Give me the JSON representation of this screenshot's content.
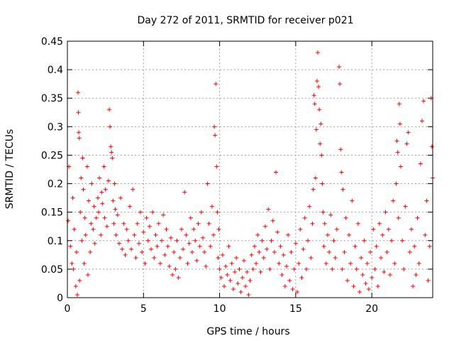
{
  "chart_data": {
    "type": "scatter",
    "title": "Day 272 of 2011, SRMTID for receiver p021",
    "xlabel": "GPS time / hours",
    "ylabel": "SRMTID / TECUs",
    "xlim": [
      0,
      24
    ],
    "ylim": [
      0,
      0.45
    ],
    "x_ticks": [
      0,
      5,
      10,
      15,
      20
    ],
    "y_ticks": [
      0,
      0.05,
      0.1,
      0.15,
      0.2,
      0.25,
      0.3,
      0.35,
      0.4,
      0.45
    ],
    "x_tick_labels": [
      "0",
      "5",
      "10",
      "15",
      "20"
    ],
    "y_tick_labels": [
      "0",
      "0.05",
      "0.1",
      "0.15",
      "0.2",
      "0.25",
      "0.3",
      "0.35",
      "0.4",
      "0.45"
    ],
    "grid": true,
    "marker": "+",
    "color": "#ff0000",
    "series": [
      {
        "name": "SRMTID",
        "points": [
          [
            0.05,
            0.135
          ],
          [
            0.1,
            0.23
          ],
          [
            0.2,
            0.09
          ],
          [
            0.3,
            0.06
          ],
          [
            0.35,
            0.175
          ],
          [
            0.4,
            0.05
          ],
          [
            0.45,
            0.12
          ],
          [
            0.55,
            0.02
          ],
          [
            0.6,
            0.08
          ],
          [
            0.65,
            0.005
          ],
          [
            0.7,
            0.36
          ],
          [
            0.72,
            0.325
          ],
          [
            0.75,
            0.29
          ],
          [
            0.78,
            0.28
          ],
          [
            0.8,
            0.03
          ],
          [
            0.85,
            0.15
          ],
          [
            0.9,
            0.21
          ],
          [
            0.95,
            0.1
          ],
          [
            1.0,
            0.245
          ],
          [
            1.05,
            0.19
          ],
          [
            1.1,
            0.06
          ],
          [
            1.15,
            0.14
          ],
          [
            1.2,
            0.11
          ],
          [
            1.3,
            0.23
          ],
          [
            1.35,
            0.04
          ],
          [
            1.4,
            0.17
          ],
          [
            1.5,
            0.08
          ],
          [
            1.55,
            0.13
          ],
          [
            1.6,
            0.2
          ],
          [
            1.7,
            0.12
          ],
          [
            1.75,
            0.16
          ],
          [
            1.8,
            0.095
          ],
          [
            1.9,
            0.14
          ],
          [
            2.0,
            0.175
          ],
          [
            2.05,
            0.15
          ],
          [
            2.1,
            0.21
          ],
          [
            2.2,
            0.11
          ],
          [
            2.25,
            0.185
          ],
          [
            2.3,
            0.165
          ],
          [
            2.4,
            0.23
          ],
          [
            2.45,
            0.14
          ],
          [
            2.5,
            0.19
          ],
          [
            2.6,
            0.125
          ],
          [
            2.7,
            0.205
          ],
          [
            2.75,
            0.33
          ],
          [
            2.8,
            0.3
          ],
          [
            2.85,
            0.265
          ],
          [
            2.9,
            0.255
          ],
          [
            2.95,
            0.245
          ],
          [
            3.0,
            0.17
          ],
          [
            3.05,
            0.13
          ],
          [
            3.1,
            0.2
          ],
          [
            3.15,
            0.155
          ],
          [
            3.2,
            0.11
          ],
          [
            3.3,
            0.145
          ],
          [
            3.4,
            0.095
          ],
          [
            3.5,
            0.175
          ],
          [
            3.6,
            0.085
          ],
          [
            3.7,
            0.13
          ],
          [
            3.8,
            0.075
          ],
          [
            3.9,
            0.12
          ],
          [
            4.0,
            0.1
          ],
          [
            4.1,
            0.16
          ],
          [
            4.2,
            0.085
          ],
          [
            4.3,
            0.19
          ],
          [
            4.4,
            0.11
          ],
          [
            4.5,
            0.07
          ],
          [
            4.6,
            0.13
          ],
          [
            4.7,
            0.095
          ],
          [
            4.8,
            0.15
          ],
          [
            4.9,
            0.08
          ],
          [
            5.0,
            0.115
          ],
          [
            5.1,
            0.06
          ],
          [
            5.2,
            0.14
          ],
          [
            5.3,
            0.1
          ],
          [
            5.4,
            0.125
          ],
          [
            5.5,
            0.085
          ],
          [
            5.6,
            0.15
          ],
          [
            5.7,
            0.07
          ],
          [
            5.8,
            0.11
          ],
          [
            5.9,
            0.09
          ],
          [
            6.0,
            0.13
          ],
          [
            6.1,
            0.06
          ],
          [
            6.2,
            0.1
          ],
          [
            6.3,
            0.145
          ],
          [
            6.4,
            0.075
          ],
          [
            6.5,
            0.12
          ],
          [
            6.6,
            0.09
          ],
          [
            6.7,
            0.055
          ],
          [
            6.8,
            0.105
          ],
          [
            6.9,
            0.04
          ],
          [
            7.0,
            0.08
          ],
          [
            7.1,
            0.05
          ],
          [
            7.2,
            0.1
          ],
          [
            7.3,
            0.035
          ],
          [
            7.4,
            0.07
          ],
          [
            7.5,
            0.12
          ],
          [
            7.6,
            0.085
          ],
          [
            7.7,
            0.185
          ],
          [
            7.8,
            0.11
          ],
          [
            7.9,
            0.06
          ],
          [
            8.0,
            0.095
          ],
          [
            8.1,
            0.14
          ],
          [
            8.2,
            0.08
          ],
          [
            8.3,
            0.12
          ],
          [
            8.4,
            0.1
          ],
          [
            8.5,
            0.065
          ],
          [
            8.6,
            0.13
          ],
          [
            8.7,
            0.09
          ],
          [
            8.8,
            0.15
          ],
          [
            8.9,
            0.105
          ],
          [
            9.0,
            0.08
          ],
          [
            9.1,
            0.055
          ],
          [
            9.2,
            0.2
          ],
          [
            9.3,
            0.13
          ],
          [
            9.4,
            0.09
          ],
          [
            9.5,
            0.16
          ],
          [
            9.6,
            0.11
          ],
          [
            9.65,
            0.3
          ],
          [
            9.7,
            0.285
          ],
          [
            9.75,
            0.375
          ],
          [
            9.8,
            0.23
          ],
          [
            9.85,
            0.15
          ],
          [
            9.9,
            0.07
          ],
          [
            9.95,
            0.12
          ],
          [
            10.0,
            0.05
          ],
          [
            10.1,
            0.035
          ],
          [
            10.2,
            0.075
          ],
          [
            10.3,
            0.02
          ],
          [
            10.4,
            0.055
          ],
          [
            10.5,
            0.04
          ],
          [
            10.6,
            0.09
          ],
          [
            10.7,
            0.03
          ],
          [
            10.8,
            0.06
          ],
          [
            10.9,
            0.015
          ],
          [
            11.0,
            0.045
          ],
          [
            11.1,
            0.07
          ],
          [
            11.2,
            0.025
          ],
          [
            11.3,
            0.05
          ],
          [
            11.4,
            0.01
          ],
          [
            11.5,
            0.035
          ],
          [
            11.6,
            0.065
          ],
          [
            11.7,
            0.02
          ],
          [
            11.8,
            0.045
          ],
          [
            11.9,
            0.005
          ],
          [
            12.0,
            0.03
          ],
          [
            12.1,
            0.075
          ],
          [
            12.2,
            0.05
          ],
          [
            12.3,
            0.09
          ],
          [
            12.4,
            0.06
          ],
          [
            12.5,
            0.11
          ],
          [
            12.6,
            0.08
          ],
          [
            12.7,
            0.045
          ],
          [
            12.8,
            0.1
          ],
          [
            12.9,
            0.07
          ],
          [
            13.0,
            0.125
          ],
          [
            13.1,
            0.085
          ],
          [
            13.2,
            0.155
          ],
          [
            13.3,
            0.05
          ],
          [
            13.4,
            0.1
          ],
          [
            13.5,
            0.135
          ],
          [
            13.6,
            0.08
          ],
          [
            13.7,
            0.22
          ],
          [
            13.8,
            0.115
          ],
          [
            13.9,
            0.06
          ],
          [
            14.0,
            0.09
          ],
          [
            14.1,
            0.04
          ],
          [
            14.2,
            0.075
          ],
          [
            14.3,
            0.02
          ],
          [
            14.4,
            0.055
          ],
          [
            14.5,
            0.11
          ],
          [
            14.6,
            0.03
          ],
          [
            14.7,
            0.08
          ],
          [
            14.8,
            0.015
          ],
          [
            14.9,
            0.05
          ],
          [
            15.0,
            0.095
          ],
          [
            15.1,
            0.01
          ],
          [
            15.2,
            0.06
          ],
          [
            15.3,
            0.12
          ],
          [
            15.4,
            0.035
          ],
          [
            15.5,
            0.085
          ],
          [
            15.6,
            0.14
          ],
          [
            15.7,
            0.05
          ],
          [
            15.8,
            0.1
          ],
          [
            15.9,
            0.16
          ],
          [
            16.0,
            0.07
          ],
          [
            16.1,
            0.13
          ],
          [
            16.15,
            0.19
          ],
          [
            16.2,
            0.355
          ],
          [
            16.25,
            0.34
          ],
          [
            16.3,
            0.21
          ],
          [
            16.35,
            0.295
          ],
          [
            16.4,
            0.38
          ],
          [
            16.45,
            0.43
          ],
          [
            16.5,
            0.37
          ],
          [
            16.55,
            0.33
          ],
          [
            16.6,
            0.27
          ],
          [
            16.65,
            0.305
          ],
          [
            16.7,
            0.25
          ],
          [
            16.75,
            0.2
          ],
          [
            16.8,
            0.15
          ],
          [
            16.85,
            0.09
          ],
          [
            16.9,
            0.13
          ],
          [
            17.0,
            0.06
          ],
          [
            17.1,
            0.11
          ],
          [
            17.2,
            0.08
          ],
          [
            17.3,
            0.145
          ],
          [
            17.4,
            0.05
          ],
          [
            17.5,
            0.1
          ],
          [
            17.6,
            0.07
          ],
          [
            17.7,
            0.12
          ],
          [
            17.85,
            0.405
          ],
          [
            17.9,
            0.375
          ],
          [
            17.95,
            0.26
          ],
          [
            18.0,
            0.22
          ],
          [
            18.05,
            0.05
          ],
          [
            18.1,
            0.19
          ],
          [
            18.2,
            0.08
          ],
          [
            18.3,
            0.14
          ],
          [
            18.4,
            0.03
          ],
          [
            18.5,
            0.11
          ],
          [
            18.6,
            0.06
          ],
          [
            18.7,
            0.17
          ],
          [
            18.8,
            0.02
          ],
          [
            18.9,
            0.09
          ],
          [
            19.0,
            0.05
          ],
          [
            19.1,
            0.13
          ],
          [
            19.2,
            0.01
          ],
          [
            19.3,
            0.07
          ],
          [
            19.4,
            0.04
          ],
          [
            19.5,
            0.1
          ],
          [
            19.6,
            0.025
          ],
          [
            19.7,
            0.06
          ],
          [
            19.8,
            0.015
          ],
          [
            19.9,
            0.08
          ],
          [
            20.0,
            0.035
          ],
          [
            20.1,
            0.12
          ],
          [
            20.2,
            0.05
          ],
          [
            20.3,
            0.09
          ],
          [
            20.4,
            0.02
          ],
          [
            20.5,
            0.13
          ],
          [
            20.6,
            0.07
          ],
          [
            20.7,
            0.11
          ],
          [
            20.8,
            0.045
          ],
          [
            20.9,
            0.15
          ],
          [
            21.0,
            0.08
          ],
          [
            21.1,
            0.12
          ],
          [
            21.2,
            0.04
          ],
          [
            21.3,
            0.1
          ],
          [
            21.4,
            0.17
          ],
          [
            21.5,
            0.06
          ],
          [
            21.6,
            0.2
          ],
          [
            21.65,
            0.275
          ],
          [
            21.7,
            0.255
          ],
          [
            21.75,
            0.14
          ],
          [
            21.8,
            0.34
          ],
          [
            21.85,
            0.305
          ],
          [
            21.9,
            0.23
          ],
          [
            22.0,
            0.1
          ],
          [
            22.1,
            0.05
          ],
          [
            22.2,
            0.16
          ],
          [
            22.3,
            0.27
          ],
          [
            22.4,
            0.29
          ],
          [
            22.5,
            0.08
          ],
          [
            22.6,
            0.12
          ],
          [
            22.7,
            0.02
          ],
          [
            22.8,
            0.09
          ],
          [
            22.9,
            0.04
          ],
          [
            23.0,
            0.14
          ],
          [
            23.1,
            0.06
          ],
          [
            23.2,
            0.235
          ],
          [
            23.3,
            0.31
          ],
          [
            23.4,
            0.345
          ],
          [
            23.5,
            0.11
          ],
          [
            23.6,
            0.17
          ],
          [
            23.7,
            0.03
          ],
          [
            23.8,
            0.09
          ],
          [
            23.9,
            0.35
          ],
          [
            23.95,
            0.265
          ],
          [
            24.0,
            0.21
          ]
        ]
      }
    ]
  }
}
